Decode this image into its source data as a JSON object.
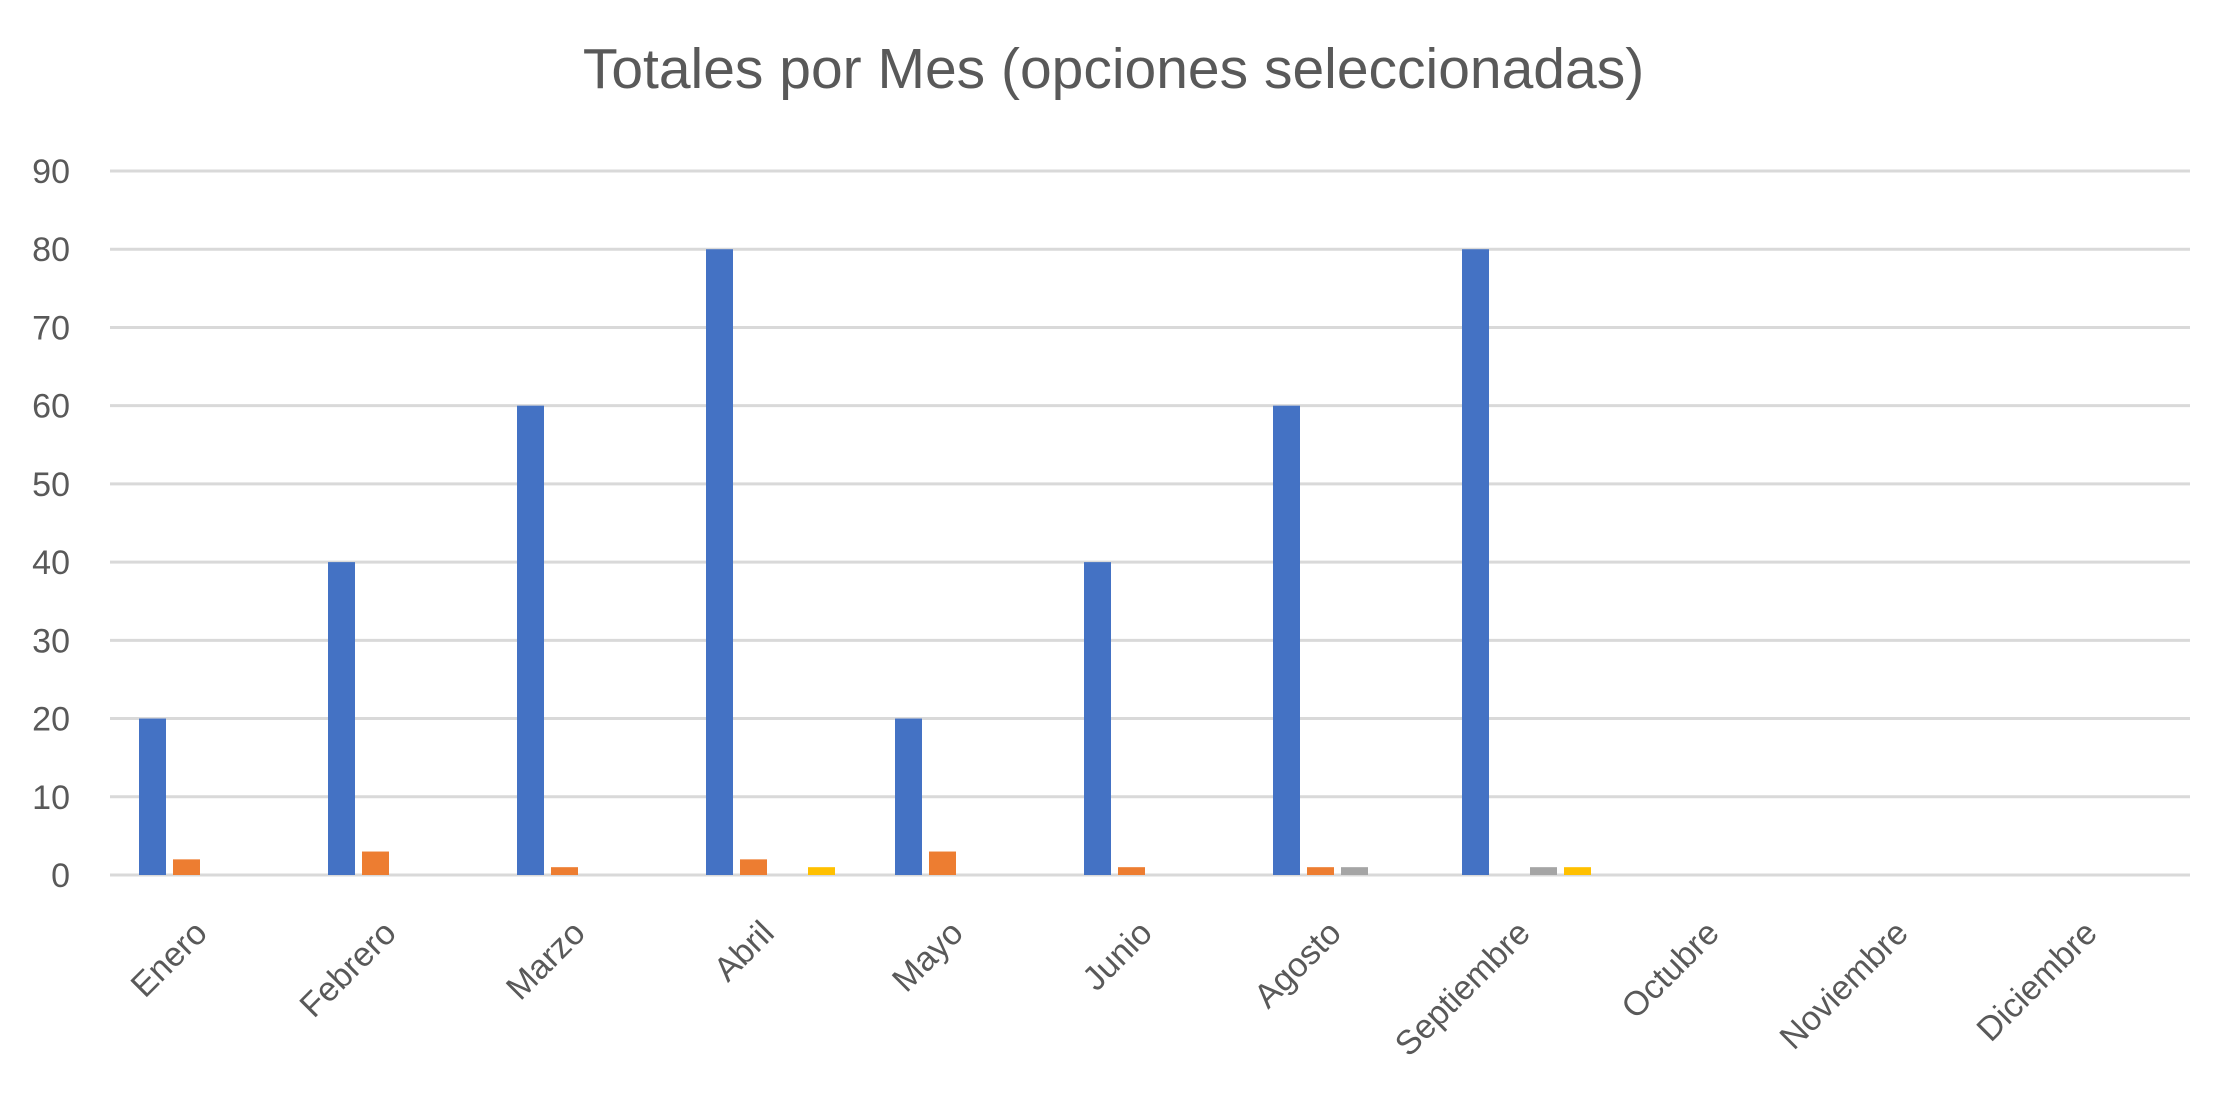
{
  "chart_data": {
    "type": "bar",
    "title": "Totales por Mes (opciones seleccionadas)",
    "xlabel": "",
    "ylabel": "",
    "ylim": [
      0,
      90
    ],
    "yticks": [
      "0",
      "10",
      "20",
      "30",
      "40",
      "50",
      "60",
      "70",
      "80",
      "90"
    ],
    "grid": true,
    "legend": "none",
    "categories": [
      "Enero",
      "Febrero",
      "Marzo",
      "Abril",
      "Mayo",
      "Junio",
      "Agosto",
      "Septiembre",
      "Octubre",
      "Noviembre",
      "Diciembre"
    ],
    "series": [
      {
        "color": "#4472C4",
        "values": [
          20,
          40,
          60,
          80,
          20,
          40,
          60,
          80,
          0,
          0,
          0
        ]
      },
      {
        "color": "#ED7D31",
        "values": [
          2,
          3,
          1,
          2,
          3,
          1,
          1,
          0,
          0,
          0,
          0
        ]
      },
      {
        "color": "#A5A5A5",
        "values": [
          0,
          0,
          0,
          0,
          0,
          0,
          1,
          1,
          0,
          0,
          0
        ]
      },
      {
        "color": "#FFC000",
        "values": [
          0,
          0,
          0,
          1,
          0,
          0,
          0,
          1,
          0,
          0,
          0
        ]
      }
    ]
  }
}
